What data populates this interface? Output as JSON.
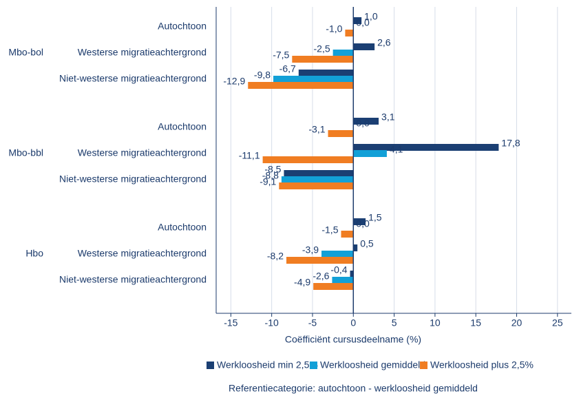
{
  "chart_data": {
    "type": "grouped-barh",
    "xlabel": "Coëfficiënt cursusdeelname (%)",
    "note": "Referentiecategorie: autochtoon - werkloosheid gemiddeld",
    "groups": [
      "Mbo-bol",
      "Mbo-bbl",
      "Hbo"
    ],
    "categories": [
      "Autochtoon",
      "Westerse migratieachtergrond",
      "Niet-westerse migratieachtergrond",
      "Autochtoon",
      "Westerse migratieachtergrond",
      "Niet-westerse migratieachtergrond",
      "Autochtoon",
      "Westerse migratieachtergrond",
      "Niet-westerse migratieachtergrond"
    ],
    "series": [
      {
        "name": "Werkloosheid min 2,5%",
        "color": "#1b3f73",
        "values": [
          1.0,
          2.6,
          -6.7,
          3.1,
          17.8,
          -8.5,
          1.5,
          0.5,
          -0.4
        ],
        "value_labels": [
          "1,0",
          "2,6",
          "-6,7",
          "3,1",
          "17,8",
          "-8,5",
          "1,5",
          "0,5",
          "-0,4"
        ]
      },
      {
        "name": "Werkloosheid gemiddeld",
        "color": "#12a0d7",
        "values": [
          0.0,
          -2.5,
          -9.8,
          0.0,
          4.1,
          -8.8,
          0.0,
          -3.9,
          -2.6
        ],
        "value_labels": [
          "0,0",
          "-2,5",
          "-9,8",
          "0,0",
          "4,1",
          "-8,8",
          "0,0",
          "-3,9",
          "-2,6"
        ]
      },
      {
        "name": "Werkloosheid plus 2,5%",
        "color": "#f07d22",
        "values": [
          -1.0,
          -7.5,
          -12.9,
          -3.1,
          -11.1,
          -9.1,
          -1.5,
          -8.2,
          -4.9
        ],
        "value_labels": [
          "-1,0",
          "-7,5",
          "-12,9",
          "-3,1",
          "-11,1",
          "-9,1",
          "-1,5",
          "-8,2",
          "-4,9"
        ]
      }
    ],
    "xlim": [
      -16.8,
      26.7
    ],
    "xticks": [
      -15,
      -10,
      -5,
      0,
      5,
      10,
      15,
      20,
      25
    ],
    "grid": true
  }
}
